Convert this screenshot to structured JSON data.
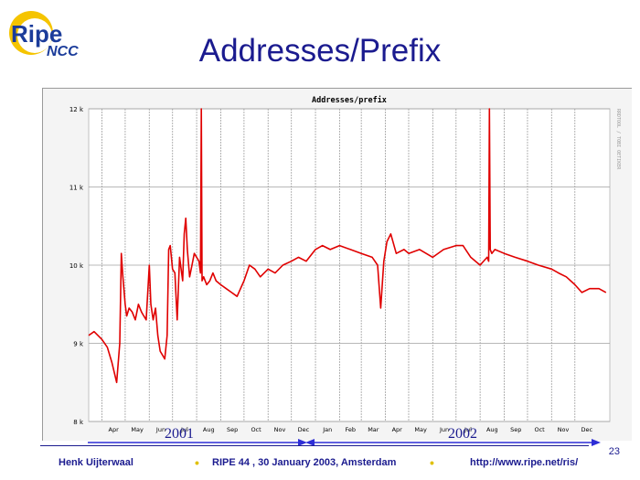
{
  "logo": {
    "main": "Ripe",
    "sub": "NCC"
  },
  "slide": {
    "title": "Addresses/Prefix",
    "number": "23",
    "years": [
      "2001",
      "2002"
    ],
    "footer": {
      "author": "Henk Uijterwaal",
      "event": "RIPE 44 ,  30 January 2003, Amsterdam",
      "url": "http://www.ripe.net/ris/"
    }
  },
  "chart_data": {
    "type": "line",
    "title": "Addresses/prefix",
    "watermark": "RRDTOOL / TOBI OETIKER",
    "xlabel": "",
    "ylabel": "",
    "ylim": [
      8000,
      12000
    ],
    "yticks": [
      8000,
      9000,
      10000,
      11000,
      12000
    ],
    "ytick_labels": [
      "8 k",
      "9 k",
      "10 k",
      "11 k",
      "12 k"
    ],
    "xlim": [
      "2001-03-15",
      "2003-01-15"
    ],
    "xtick_labels": [
      "Apr",
      "May",
      "Jun",
      "Jul",
      "Aug",
      "Sep",
      "Oct",
      "Nov",
      "Dec",
      "Jan",
      "Feb",
      "Mar",
      "Apr",
      "May",
      "Jun",
      "Jul",
      "Aug",
      "Sep",
      "Oct",
      "Nov",
      "Dec"
    ],
    "xticks": [
      "2001-04-01",
      "2001-05-01",
      "2001-06-01",
      "2001-07-01",
      "2001-08-01",
      "2001-09-01",
      "2001-10-01",
      "2001-11-01",
      "2001-12-01",
      "2002-01-01",
      "2002-02-01",
      "2002-03-01",
      "2002-04-01",
      "2002-05-01",
      "2002-06-01",
      "2002-07-01",
      "2002-08-01",
      "2002-09-01",
      "2002-10-01",
      "2002-11-01",
      "2002-12-01"
    ],
    "grid": true,
    "colors": {
      "line": "#e00000",
      "grid": "#a0a0a0",
      "plot_bg": "#ffffff",
      "arrow": "#2d2dd6"
    },
    "series": [
      {
        "name": "",
        "x": [
          "2001-03-15",
          "2001-03-22",
          "2001-04-01",
          "2001-04-08",
          "2001-04-14",
          "2001-04-20",
          "2001-04-24",
          "2001-04-26",
          "2001-04-28",
          "2001-05-01",
          "2001-05-03",
          "2001-05-06",
          "2001-05-10",
          "2001-05-14",
          "2001-05-18",
          "2001-05-22",
          "2001-05-25",
          "2001-05-28",
          "2001-06-01",
          "2001-06-03",
          "2001-06-06",
          "2001-06-09",
          "2001-06-12",
          "2001-06-15",
          "2001-06-18",
          "2001-06-21",
          "2001-06-24",
          "2001-06-26",
          "2001-06-28",
          "2001-07-01",
          "2001-07-04",
          "2001-07-07",
          "2001-07-10",
          "2001-07-14",
          "2001-07-16",
          "2001-07-18",
          "2001-07-20",
          "2001-07-23",
          "2001-07-26",
          "2001-07-29",
          "2001-08-01",
          "2001-08-04",
          "2001-08-06",
          "2001-08-07",
          "2001-08-08",
          "2001-08-10",
          "2001-08-14",
          "2001-08-18",
          "2001-08-22",
          "2001-08-26",
          "2001-09-01",
          "2001-09-08",
          "2001-09-15",
          "2001-09-22",
          "2001-10-01",
          "2001-10-08",
          "2001-10-15",
          "2001-10-22",
          "2001-11-01",
          "2001-11-10",
          "2001-11-20",
          "2001-12-01",
          "2001-12-10",
          "2001-12-20",
          "2002-01-01",
          "2002-01-10",
          "2002-01-20",
          "2002-02-01",
          "2002-02-15",
          "2002-03-01",
          "2002-03-15",
          "2002-03-22",
          "2002-03-26",
          "2002-03-30",
          "2002-04-03",
          "2002-04-08",
          "2002-04-15",
          "2002-04-25",
          "2002-05-01",
          "2002-05-15",
          "2002-06-01",
          "2002-06-15",
          "2002-07-01",
          "2002-07-10",
          "2002-07-20",
          "2002-08-01",
          "2002-08-10",
          "2002-08-12",
          "2002-08-13",
          "2002-08-14",
          "2002-08-16",
          "2002-08-20",
          "2002-09-01",
          "2002-09-15",
          "2002-10-01",
          "2002-10-15",
          "2002-11-01",
          "2002-11-10",
          "2002-11-20",
          "2002-12-01",
          "2002-12-10",
          "2002-12-20",
          "2003-01-01",
          "2003-01-10"
        ],
        "values": [
          9100,
          9150,
          9050,
          8950,
          8750,
          8500,
          9000,
          10150,
          9850,
          9500,
          9350,
          9450,
          9400,
          9300,
          9500,
          9400,
          9350,
          9300,
          10000,
          9500,
          9300,
          9450,
          9100,
          8900,
          8850,
          8800,
          9100,
          10200,
          10250,
          9950,
          9900,
          9300,
          10100,
          9800,
          10400,
          10600,
          10200,
          9850,
          10000,
          10150,
          10100,
          10050,
          9900,
          12000,
          9800,
          9850,
          9750,
          9800,
          9900,
          9800,
          9750,
          9700,
          9650,
          9600,
          9800,
          10000,
          9950,
          9850,
          9950,
          9900,
          10000,
          10050,
          10100,
          10050,
          10200,
          10250,
          10200,
          10250,
          10200,
          10150,
          10100,
          10000,
          9450,
          10050,
          10300,
          10400,
          10150,
          10200,
          10150,
          10200,
          10100,
          10200,
          10250,
          10250,
          10100,
          10000,
          10100,
          10050,
          12000,
          10200,
          10150,
          10200,
          10150,
          10100,
          10050,
          10000,
          9950,
          9900,
          9850,
          9750,
          9650,
          9700,
          9700,
          9650
        ]
      }
    ]
  }
}
